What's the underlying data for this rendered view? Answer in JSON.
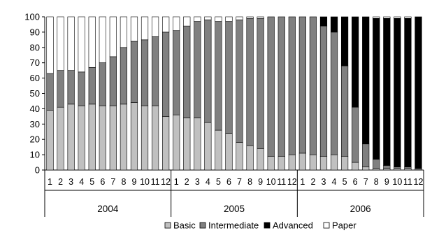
{
  "chart_data": {
    "type": "bar",
    "stacked": true,
    "ylim": [
      0,
      100
    ],
    "yticks": [
      0,
      10,
      20,
      30,
      40,
      50,
      60,
      70,
      80,
      90,
      100
    ],
    "grid": false,
    "legend_position": "bottom",
    "years": [
      "2004",
      "2005",
      "2006"
    ],
    "months": [
      "1",
      "2",
      "3",
      "4",
      "5",
      "6",
      "7",
      "8",
      "9",
      "10",
      "11",
      "12"
    ],
    "series": [
      {
        "name": "Basic",
        "color": "#c0c0c0",
        "values": [
          39,
          41,
          43,
          42,
          43,
          42,
          42,
          43,
          44,
          42,
          42,
          35,
          36,
          34,
          34,
          31,
          26,
          24,
          18,
          16,
          14,
          9,
          9,
          10,
          11,
          10,
          9,
          10,
          9,
          5,
          2,
          1,
          1,
          1,
          1,
          0
        ]
      },
      {
        "name": "Intermediate",
        "color": "#808080",
        "values": [
          24,
          24,
          22,
          22,
          24,
          28,
          32,
          37,
          40,
          43,
          45,
          55,
          55,
          60,
          63,
          67,
          71,
          73,
          80,
          83,
          85,
          91,
          91,
          90,
          89,
          90,
          85,
          80,
          59,
          36,
          15,
          6,
          2,
          1,
          1,
          1
        ]
      },
      {
        "name": "Advanced",
        "color": "#000000",
        "values": [
          0,
          0,
          0,
          0,
          0,
          0,
          0,
          0,
          0,
          0,
          0,
          0,
          0,
          0,
          0,
          0,
          0,
          0,
          0,
          0,
          0,
          0,
          0,
          0,
          0,
          0,
          6,
          10,
          32,
          59,
          83,
          92,
          96,
          97,
          97,
          99
        ]
      },
      {
        "name": "Paper",
        "color": "#ffffff",
        "values": [
          37,
          35,
          35,
          36,
          33,
          30,
          26,
          20,
          16,
          15,
          13,
          10,
          9,
          6,
          3,
          2,
          3,
          3,
          2,
          1,
          1,
          0,
          0,
          0,
          0,
          0,
          0,
          0,
          0,
          0,
          0,
          1,
          1,
          1,
          1,
          0
        ]
      }
    ]
  }
}
